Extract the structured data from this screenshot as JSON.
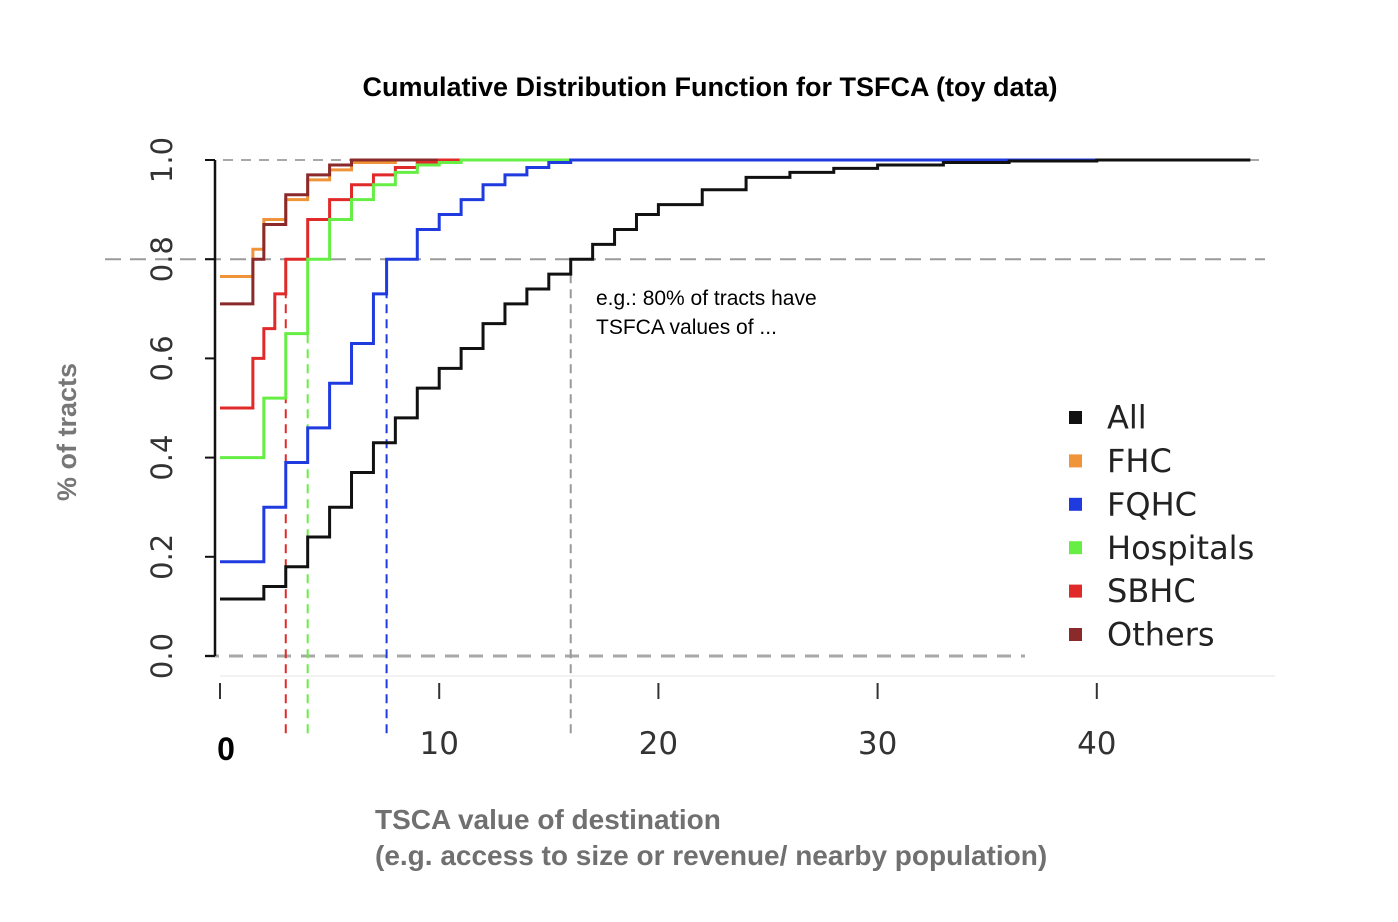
{
  "chart_data": {
    "type": "line",
    "title": "Cumulative Distribution Function for TSFCA (toy data)",
    "xlabel": [
      "TSCA value of destination",
      "(e.g. access to size or revenue/ nearby population)"
    ],
    "ylabel": "% of tracts",
    "xlim": [
      0,
      47
    ],
    "ylim": [
      0,
      1
    ],
    "x_ticks": [
      "0",
      "10",
      "20",
      "30",
      "40"
    ],
    "y_ticks": [
      "0.0",
      "0.2",
      "0.4",
      "0.6",
      "0.8",
      "1.0"
    ],
    "legend_position": "right",
    "reference_line_y": 0.8,
    "annotation": [
      "e.g.: 80% of tracts have",
      "TSFCA values of ..."
    ],
    "series": [
      {
        "name": "All",
        "color": "#111111",
        "points": [
          [
            0,
            0.115
          ],
          [
            1,
            0.115
          ],
          [
            2,
            0.14
          ],
          [
            3,
            0.18
          ],
          [
            4,
            0.24
          ],
          [
            5,
            0.3
          ],
          [
            6,
            0.37
          ],
          [
            7,
            0.43
          ],
          [
            8,
            0.48
          ],
          [
            9,
            0.54
          ],
          [
            10,
            0.58
          ],
          [
            11,
            0.62
          ],
          [
            12,
            0.67
          ],
          [
            13,
            0.71
          ],
          [
            14,
            0.74
          ],
          [
            15,
            0.77
          ],
          [
            16,
            0.8
          ],
          [
            17,
            0.83
          ],
          [
            18,
            0.86
          ],
          [
            19,
            0.89
          ],
          [
            20,
            0.91
          ],
          [
            22,
            0.94
          ],
          [
            24,
            0.965
          ],
          [
            26,
            0.975
          ],
          [
            28,
            0.983
          ],
          [
            30,
            0.99
          ],
          [
            33,
            0.995
          ],
          [
            36,
            0.998
          ],
          [
            40,
            1.0
          ],
          [
            47,
            1.0
          ]
        ]
      },
      {
        "name": "FHC",
        "color": "#f0943a",
        "points": [
          [
            0,
            0.765
          ],
          [
            1,
            0.765
          ],
          [
            1.5,
            0.82
          ],
          [
            2,
            0.88
          ],
          [
            3,
            0.92
          ],
          [
            4,
            0.96
          ],
          [
            5,
            0.98
          ],
          [
            6,
            0.995
          ],
          [
            8,
            1.0
          ],
          [
            47,
            1.0
          ]
        ]
      },
      {
        "name": "FQHC",
        "color": "#1f3be0",
        "points": [
          [
            0,
            0.19
          ],
          [
            1,
            0.19
          ],
          [
            2,
            0.3
          ],
          [
            3,
            0.39
          ],
          [
            4,
            0.46
          ],
          [
            5,
            0.55
          ],
          [
            6,
            0.63
          ],
          [
            7,
            0.73
          ],
          [
            7.6,
            0.8
          ],
          [
            9,
            0.86
          ],
          [
            10,
            0.89
          ],
          [
            11,
            0.92
          ],
          [
            12,
            0.95
          ],
          [
            13,
            0.97
          ],
          [
            14,
            0.985
          ],
          [
            15,
            0.995
          ],
          [
            16,
            1.0
          ],
          [
            47,
            1.0
          ]
        ]
      },
      {
        "name": "Hospitals",
        "color": "#66ee44",
        "points": [
          [
            0,
            0.4
          ],
          [
            1,
            0.4
          ],
          [
            2,
            0.52
          ],
          [
            3,
            0.65
          ],
          [
            4,
            0.8
          ],
          [
            5,
            0.88
          ],
          [
            6,
            0.92
          ],
          [
            7,
            0.95
          ],
          [
            8,
            0.975
          ],
          [
            9,
            0.99
          ],
          [
            10,
            0.995
          ],
          [
            11,
            1.0
          ],
          [
            47,
            1.0
          ]
        ]
      },
      {
        "name": "SBHC",
        "color": "#e02a2a",
        "points": [
          [
            0,
            0.5
          ],
          [
            1,
            0.5
          ],
          [
            1.5,
            0.6
          ],
          [
            2,
            0.66
          ],
          [
            2.5,
            0.73
          ],
          [
            3,
            0.8
          ],
          [
            4,
            0.88
          ],
          [
            5,
            0.92
          ],
          [
            6,
            0.95
          ],
          [
            7,
            0.97
          ],
          [
            8,
            0.985
          ],
          [
            9,
            0.995
          ],
          [
            10,
            1.0
          ],
          [
            47,
            1.0
          ]
        ]
      },
      {
        "name": "Others",
        "color": "#8b2a2a",
        "points": [
          [
            0,
            0.71
          ],
          [
            1,
            0.71
          ],
          [
            1.5,
            0.8
          ],
          [
            2,
            0.87
          ],
          [
            3,
            0.93
          ],
          [
            4,
            0.97
          ],
          [
            5,
            0.99
          ],
          [
            6,
            1.0
          ],
          [
            47,
            1.0
          ]
        ]
      }
    ],
    "quantile_80_markers": [
      {
        "series": "SBHC",
        "x": 3
      },
      {
        "series": "Hospitals",
        "x": 4
      },
      {
        "series": "FQHC",
        "x": 7.6
      },
      {
        "series": "All",
        "x": 16
      }
    ]
  }
}
